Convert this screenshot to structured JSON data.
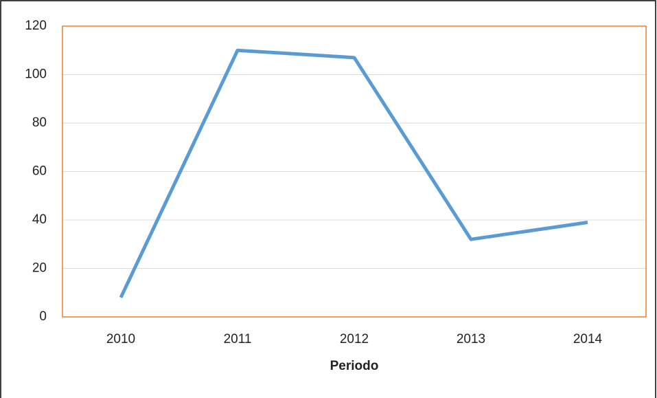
{
  "chart_data": {
    "type": "line",
    "x_label": "Periodo",
    "categories": [
      "2010",
      "2011",
      "2012",
      "2013",
      "2014"
    ],
    "values": [
      8,
      110,
      107,
      32,
      39
    ],
    "color": "#5b9bd5",
    "ylim": [
      0,
      120
    ],
    "yticks": [
      0,
      20,
      40,
      60,
      80,
      100,
      120
    ],
    "grid": true
  }
}
